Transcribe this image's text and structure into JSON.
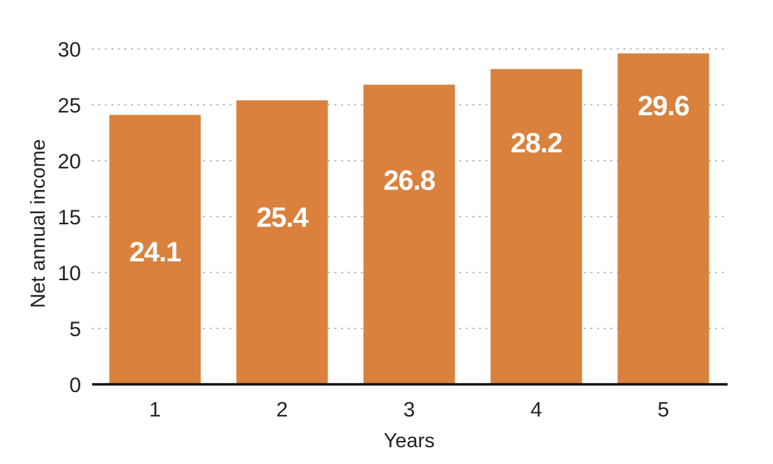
{
  "chart_data": {
    "type": "bar",
    "categories": [
      "1",
      "2",
      "3",
      "4",
      "5"
    ],
    "values": [
      24.1,
      25.4,
      26.8,
      28.2,
      29.6
    ],
    "value_labels": [
      "24.1",
      "25.4",
      "26.8",
      "28.2",
      "29.6"
    ],
    "title": "",
    "xlabel": "Years",
    "ylabel": "Net annual income",
    "ylim": [
      0,
      30
    ],
    "yticks": [
      "0",
      "5",
      "10",
      "15",
      "20",
      "25",
      "30"
    ],
    "grid": true,
    "legend": "none",
    "bar_color": "#d9813d",
    "label_color": "#ffffff"
  }
}
